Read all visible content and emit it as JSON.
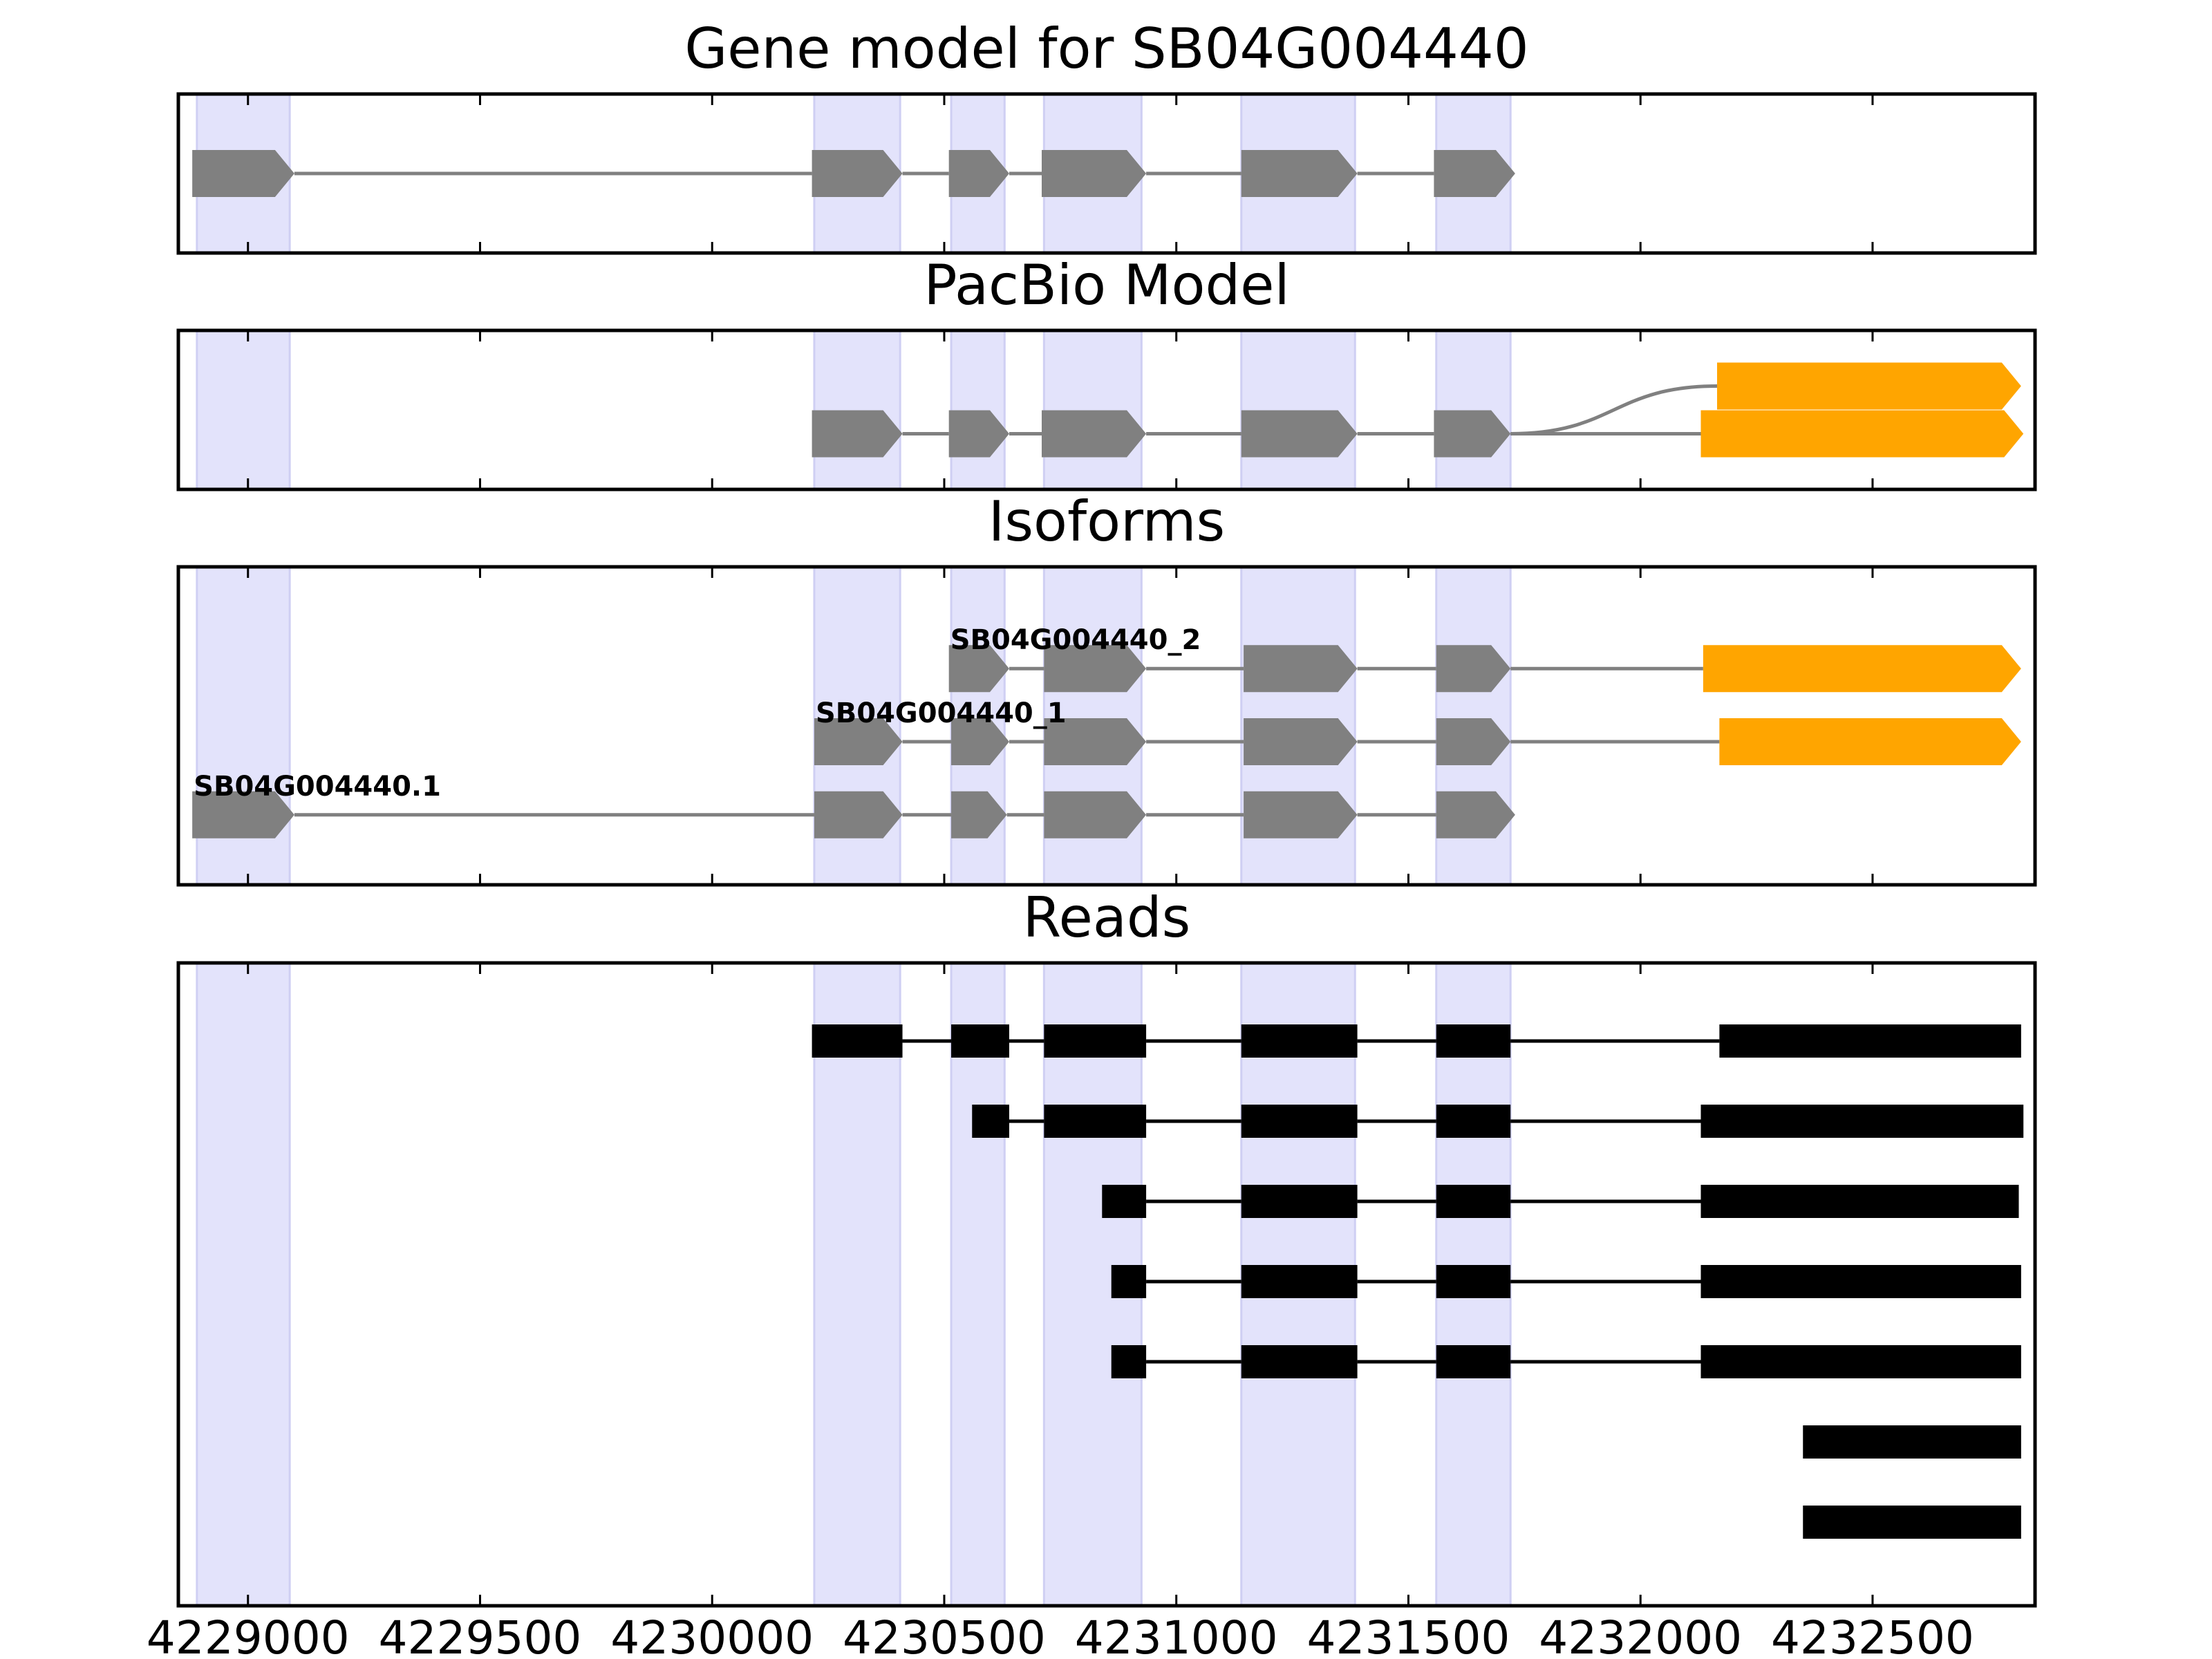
{
  "chart_data": {
    "type": "gene-track",
    "x_ticks": [
      4229000,
      4229500,
      4230000,
      4230500,
      4231000,
      4231500,
      4232000,
      4232500
    ],
    "x_tick_labels": [
      "4229000",
      "4229500",
      "4230000",
      "4230500",
      "4231000",
      "4231500",
      "4232000",
      "4232500"
    ],
    "xlim": [
      4228850,
      4232850
    ],
    "highlight_regions": [
      [
        4228890,
        4229090
      ],
      [
        4230220,
        4230405
      ],
      [
        4230515,
        4230630
      ],
      [
        4230715,
        4230925
      ],
      [
        4231140,
        4231385
      ],
      [
        4231560,
        4231720
      ]
    ],
    "panels": [
      {
        "title": "Gene model for SB04G004440",
        "kind": "gene",
        "tracks": [
          {
            "y": 0.5,
            "label": "",
            "exons": [
              [
                4228880,
                4229100
              ],
              [
                4230215,
                4230410
              ],
              [
                4230510,
                4230640
              ],
              [
                4230710,
                4230935
              ],
              [
                4231140,
                4231390
              ],
              [
                4231555,
                4231730
              ]
            ],
            "color": "#808080",
            "introns": "straight"
          }
        ]
      },
      {
        "title": "PacBio Model",
        "kind": "gene",
        "tracks": [
          {
            "y": 0.35,
            "label": "",
            "exons": [
              [
                4232165,
                4232820
              ]
            ],
            "color": "#ffa500",
            "introns": "none"
          },
          {
            "y": 0.65,
            "label": "",
            "exons": [
              [
                4230215,
                4230410
              ],
              [
                4230510,
                4230640
              ],
              [
                4230710,
                4230935
              ],
              [
                4231140,
                4231390
              ],
              [
                4231555,
                4231720
              ],
              [
                4232130,
                4232825
              ]
            ],
            "color_cds_end": 5,
            "introns": "straight"
          }
        ],
        "connector": {
          "from": 4231720,
          "to": 4232165
        }
      },
      {
        "title": "Isoforms",
        "kind": "gene",
        "tracks": [
          {
            "y": 0.32,
            "label": "SB04G004440_2",
            "exons": [
              [
                4230510,
                4230640
              ],
              [
                4230715,
                4230935
              ],
              [
                4231145,
                4231390
              ],
              [
                4231560,
                4231720
              ],
              [
                4232135,
                4232820
              ]
            ],
            "utr_from": 4
          },
          {
            "y": 0.55,
            "label": "SB04G004440_1",
            "exons": [
              [
                4230220,
                4230410
              ],
              [
                4230515,
                4230640
              ],
              [
                4230715,
                4230935
              ],
              [
                4231145,
                4231390
              ],
              [
                4231560,
                4231720
              ],
              [
                4232170,
                4232820
              ]
            ],
            "utr_from": 5
          },
          {
            "y": 0.78,
            "label": "SB04G004440.1",
            "exons": [
              [
                4228880,
                4229100
              ],
              [
                4230220,
                4230410
              ],
              [
                4230515,
                4230635
              ],
              [
                4230715,
                4230935
              ],
              [
                4231145,
                4231390
              ],
              [
                4231560,
                4231730
              ]
            ],
            "utr_from": 99
          }
        ]
      },
      {
        "title": "Reads",
        "kind": "reads",
        "reads": [
          [
            [
              4230215,
              4230410
            ],
            [
              4230515,
              4230640
            ],
            [
              4230715,
              4230935
            ],
            [
              4231140,
              4231390
            ],
            [
              4231560,
              4231720
            ],
            [
              4232170,
              4232820
            ]
          ],
          [
            [
              4230560,
              4230640
            ],
            [
              4230715,
              4230935
            ],
            [
              4231140,
              4231390
            ],
            [
              4231560,
              4231720
            ],
            [
              4232130,
              4232825
            ]
          ],
          [
            [
              4230840,
              4230935
            ],
            [
              4231140,
              4231390
            ],
            [
              4231560,
              4231720
            ],
            [
              4232130,
              4232815
            ]
          ],
          [
            [
              4230860,
              4230935
            ],
            [
              4231140,
              4231390
            ],
            [
              4231560,
              4231720
            ],
            [
              4232130,
              4232820
            ]
          ],
          [
            [
              4230860,
              4230935
            ],
            [
              4231140,
              4231390
            ],
            [
              4231560,
              4231720
            ],
            [
              4232130,
              4232820
            ]
          ],
          [
            [
              4232350,
              4232820
            ]
          ],
          [
            [
              4232350,
              4232820
            ]
          ]
        ]
      }
    ]
  },
  "colors": {
    "exon": "#808080",
    "utr": "#ffa500",
    "highlight": "#e3e3fb",
    "read": "#000000",
    "intron": "#808080"
  }
}
